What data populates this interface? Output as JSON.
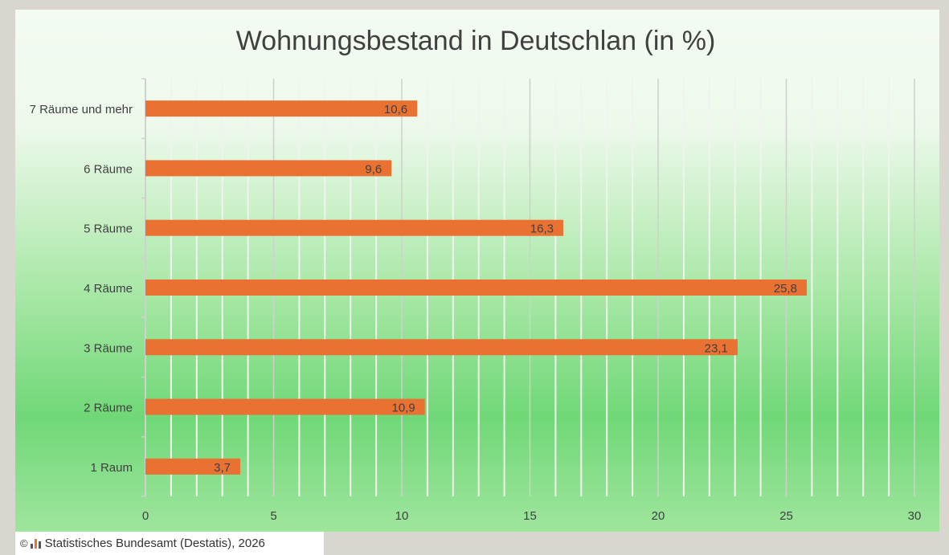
{
  "chart_data": {
    "type": "bar",
    "orientation": "horizontal",
    "title": "Wohnungsbestand in Deutschlan (in %)",
    "categories": [
      "7 Räume und mehr",
      "6 Räume",
      "5 Räume",
      "4 Räume",
      "3 Räume",
      "2 Räume",
      "1 Raum"
    ],
    "values": [
      10.6,
      9.6,
      16.3,
      25.8,
      23.1,
      10.9,
      3.7
    ],
    "value_labels": [
      "10,6",
      "9,6",
      "16,3",
      "25,8",
      "23,1",
      "10,9",
      "3,7"
    ],
    "xlim": [
      0,
      30
    ],
    "xticks": [
      0,
      5,
      10,
      15,
      20,
      25,
      30
    ],
    "grid": true,
    "bar_color": "#e97132"
  },
  "credit": {
    "copyright": "©",
    "text": "Statistisches Bundesamt (Destatis), 2026"
  }
}
